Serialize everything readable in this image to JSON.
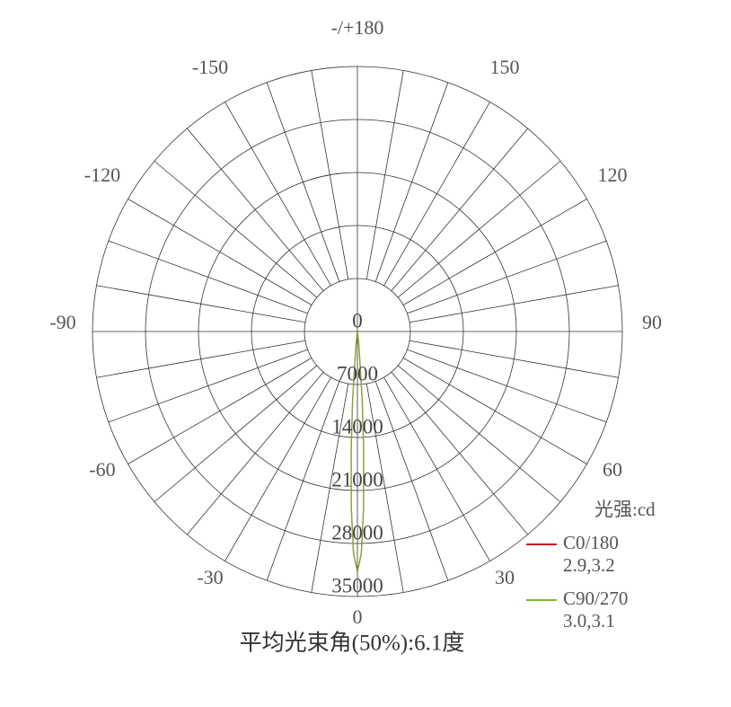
{
  "chart_data": {
    "type": "polar",
    "legend_title": "光强:cd",
    "annotation": "平均光束角(50%):6.1度",
    "rlim": [
      0,
      35000
    ],
    "rticks": [
      0,
      7000,
      14000,
      21000,
      28000,
      35000
    ],
    "angle_ticks": [
      {
        "value": 180,
        "label": "-/+180"
      },
      150,
      120,
      90,
      60,
      30,
      0,
      -30,
      -60,
      -90,
      -120,
      -150
    ],
    "x": [
      -10,
      -8,
      -6,
      -4,
      -3,
      -2,
      -1,
      0,
      1,
      2,
      3,
      4,
      6,
      8,
      10
    ],
    "series": [
      {
        "name": "C0/180",
        "beam_angles": "2.9,3.2",
        "color": "#cc1111",
        "values": [
          0,
          230,
          1980,
          9200,
          15850,
          23300,
          29400,
          31700,
          29400,
          23300,
          15850,
          9200,
          1980,
          230,
          0
        ]
      },
      {
        "name": "C90/270",
        "beam_angles": "3.0,3.1",
        "color": "#77bb33",
        "values": [
          0,
          200,
          1900,
          9000,
          15600,
          23200,
          29300,
          31700,
          29300,
          23200,
          15600,
          9000,
          1900,
          200,
          0
        ]
      }
    ]
  }
}
